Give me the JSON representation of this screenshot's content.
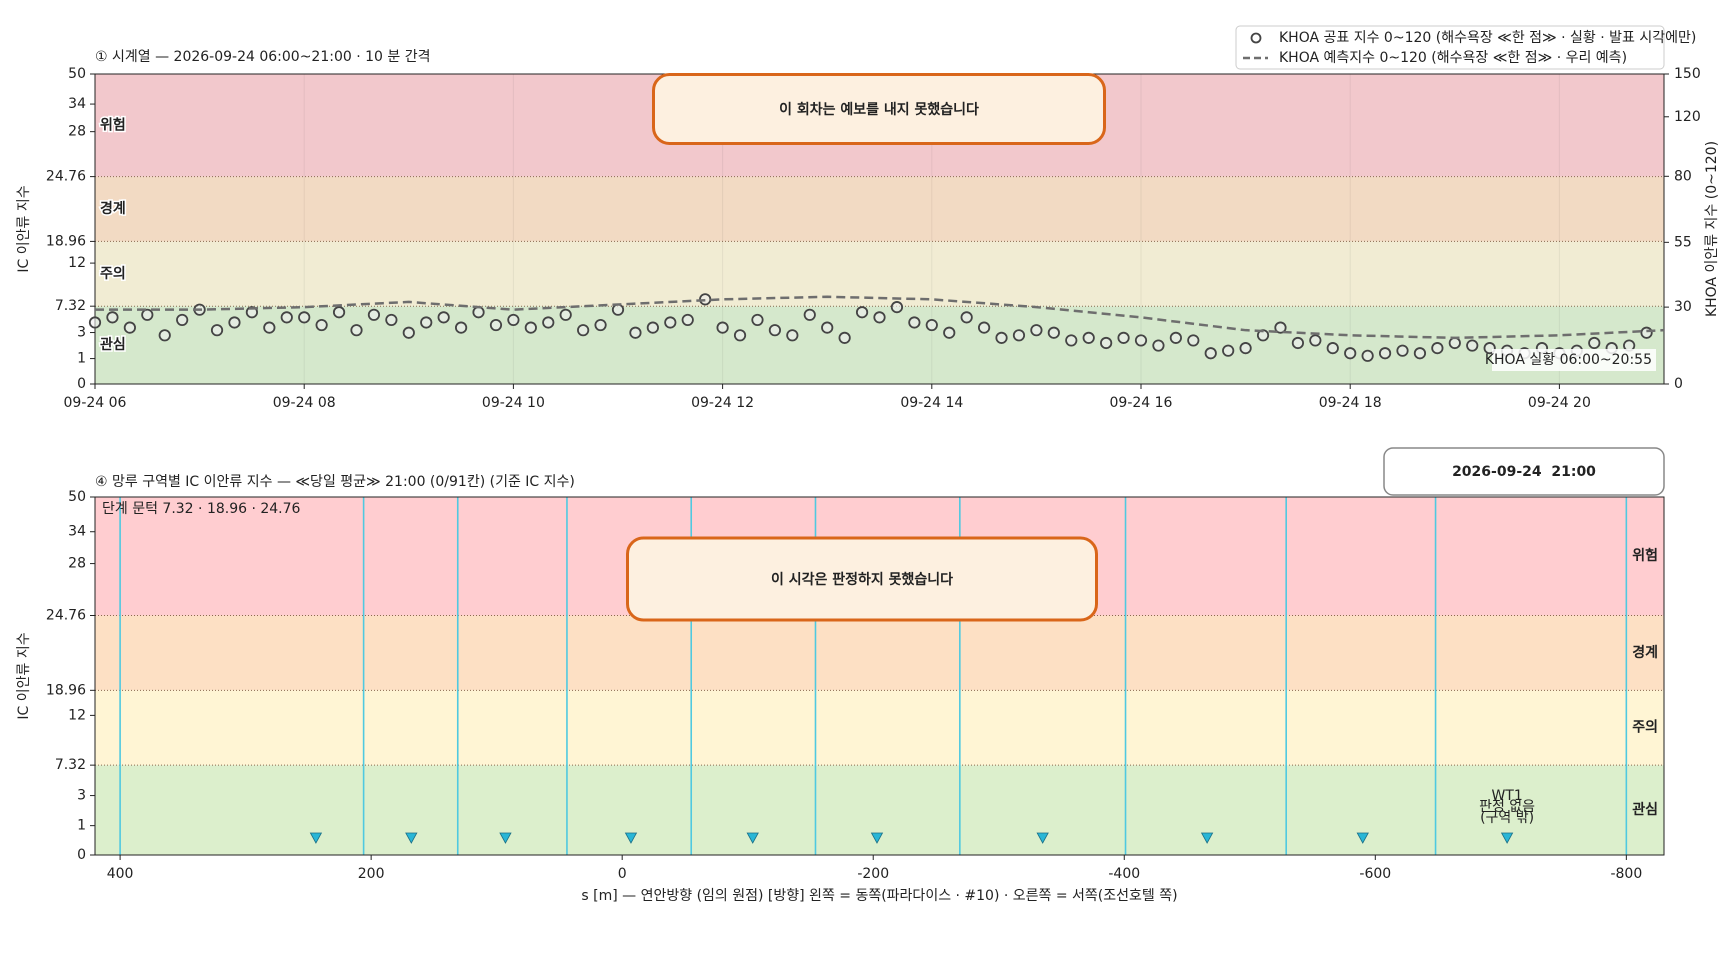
{
  "chart_data": [
    {
      "type": "line",
      "title": "① 시계열 — 2026-09-24 06:00~21:00 · 10 분 간격",
      "ylabel": "IC 이안류 지수",
      "y2label": "KHOA 이안류 지수 (0~120)",
      "ylim": [
        0,
        50
      ],
      "yticks": [
        0,
        1,
        3,
        7.32,
        12,
        18.96,
        24.76,
        28,
        34,
        50
      ],
      "y2lim": [
        0,
        150
      ],
      "y2ticks": [
        0,
        30,
        55,
        80,
        120,
        150
      ],
      "xlim": [
        "06:00",
        "21:00"
      ],
      "xticks": [
        {
          "value": "06:00",
          "label": "09-24 06"
        },
        {
          "value": "08:00",
          "label": "09-24 08"
        },
        {
          "value": "10:00",
          "label": "09-24 10"
        },
        {
          "value": "12:00",
          "label": "09-24 12"
        },
        {
          "value": "14:00",
          "label": "09-24 14"
        },
        {
          "value": "16:00",
          "label": "09-24 16"
        },
        {
          "value": "18:00",
          "label": "09-24 18"
        },
        {
          "value": "20:00",
          "label": "09-24 20"
        }
      ],
      "grid": true,
      "legend": "upper right",
      "bands": [
        {
          "name": "관심",
          "from": 0,
          "to": 7.32,
          "color": "#d5e8cc"
        },
        {
          "name": "주의",
          "from": 7.32,
          "to": 18.96,
          "color": "#f1ecd3"
        },
        {
          "name": "경계",
          "from": 18.96,
          "to": 24.76,
          "color": "#f2dac3"
        },
        {
          "name": "위험",
          "from": 24.76,
          "to": 50,
          "color": "#f2c8cc"
        }
      ],
      "message": "이 회차는 예보를 내지 못했습니다",
      "annotation": "KHOA 실황 06:00~20:55",
      "series": [
        {
          "name": "KHOA 공표 지수 0~120 (해수욕장 ≪한 점≫ · 실황 · 발표 시각에만)",
          "color": "#444444",
          "marker": "circle",
          "axis": "y2",
          "x": [
            "06:00",
            "06:10",
            "06:20",
            "06:30",
            "06:40",
            "06:50",
            "07:00",
            "07:10",
            "07:20",
            "07:30",
            "07:40",
            "07:50",
            "08:00",
            "08:10",
            "08:20",
            "08:30",
            "08:40",
            "08:50",
            "09:00",
            "09:10",
            "09:20",
            "09:30",
            "09:40",
            "09:50",
            "10:00",
            "10:10",
            "10:20",
            "10:30",
            "10:40",
            "10:50",
            "11:00",
            "11:10",
            "11:20",
            "11:30",
            "11:40",
            "11:50",
            "12:00",
            "12:10",
            "12:20",
            "12:30",
            "12:40",
            "12:50",
            "13:00",
            "13:10",
            "13:20",
            "13:30",
            "13:40",
            "13:50",
            "14:00",
            "14:10",
            "14:20",
            "14:30",
            "14:40",
            "14:50",
            "15:00",
            "15:10",
            "15:20",
            "15:30",
            "15:40",
            "15:50",
            "16:00",
            "16:10",
            "16:20",
            "16:30",
            "16:40",
            "16:50",
            "17:00",
            "17:10",
            "17:20",
            "17:30",
            "17:40",
            "17:50",
            "18:00",
            "18:10",
            "18:20",
            "18:30",
            "18:40",
            "18:50",
            "19:00",
            "19:10",
            "19:20",
            "19:30",
            "19:40",
            "19:50",
            "20:00",
            "20:10",
            "20:20",
            "20:30",
            "20:40",
            "20:50"
          ],
          "values": [
            24,
            26,
            22,
            27,
            19,
            25,
            29,
            21,
            24,
            28,
            22,
            26,
            26,
            23,
            28,
            21,
            27,
            25,
            20,
            24,
            26,
            22,
            28,
            23,
            25,
            22,
            24,
            27,
            21,
            23,
            29,
            20,
            22,
            24,
            25,
            33,
            22,
            19,
            25,
            21,
            19,
            27,
            22,
            18,
            28,
            26,
            30,
            24,
            23,
            20,
            26,
            22,
            18,
            19,
            21,
            20,
            17,
            18,
            16,
            18,
            17,
            15,
            18,
            17,
            12,
            13,
            14,
            19,
            22,
            16,
            17,
            14,
            12,
            11,
            12,
            13,
            12,
            14,
            16,
            15,
            14,
            13,
            12,
            14,
            12,
            13,
            16,
            14,
            15,
            20
          ]
        },
        {
          "name": "KHOA 예측지수 0~120 (해수욕장 ≪한 점≫ · 우리 예측)",
          "color": "#6e6e6e",
          "linestyle": "dashed",
          "axis": "y2",
          "x": [
            "06:00",
            "07:00",
            "08:00",
            "09:00",
            "10:00",
            "11:00",
            "12:00",
            "13:00",
            "14:00",
            "15:00",
            "16:00",
            "17:00",
            "18:00",
            "19:00",
            "20:00",
            "21:00"
          ],
          "values": [
            29,
            29,
            30,
            32,
            29,
            31,
            33,
            34,
            33,
            30,
            26,
            21,
            19,
            18,
            19,
            21
          ]
        }
      ]
    },
    {
      "type": "zones",
      "title": "④ 망루 구역별 IC 이안류 지수 — ≪당일 평균≫ 21:00  (0/91칸)   (기준 IC 지수)",
      "timestamp": "2026-09-24  21:00",
      "ylabel": "IC 이안류 지수",
      "xlabel": "s [m] — 연안방향 (임의 원점)     [방향] 왼쪽 = 동쪽(파라다이스 · #10) · 오른쪽 = 서쪽(조선호텔 쪽)",
      "ylim": [
        0,
        50
      ],
      "yticks": [
        0,
        1,
        3,
        7.32,
        12,
        18.96,
        24.76,
        28,
        34,
        50
      ],
      "xlim": [
        420,
        -830
      ],
      "xticks": [
        400,
        200,
        0,
        -200,
        -400,
        -600,
        -800
      ],
      "bands": [
        {
          "name": "관심",
          "from": 0,
          "to": 7.32,
          "color": "#dcefcc"
        },
        {
          "name": "주의",
          "from": 7.32,
          "to": 18.96,
          "color": "#fff5d4"
        },
        {
          "name": "경계",
          "from": 18.96,
          "to": 24.76,
          "color": "#fde0c4"
        },
        {
          "name": "위험",
          "from": 24.76,
          "to": 50,
          "color": "#ffcdd0"
        }
      ],
      "threshold_note": "단계 문턱 7.32 · 18.96 · 24.76",
      "message": "이 시각은 판정하지 못했습니다",
      "zone_bounds": [
        400,
        206,
        131,
        44,
        -55,
        -154,
        -269,
        -401,
        -529,
        -648,
        -800
      ],
      "zone_color": "#4fc9e0",
      "towers": {
        "s": [
          244,
          168,
          93,
          -7,
          -104,
          -203,
          -335,
          -466,
          -590,
          -705
        ],
        "color": "#29b6d6"
      },
      "tower_note": [
        "WT1",
        "판정 없음",
        "(구역 밖)"
      ]
    }
  ]
}
